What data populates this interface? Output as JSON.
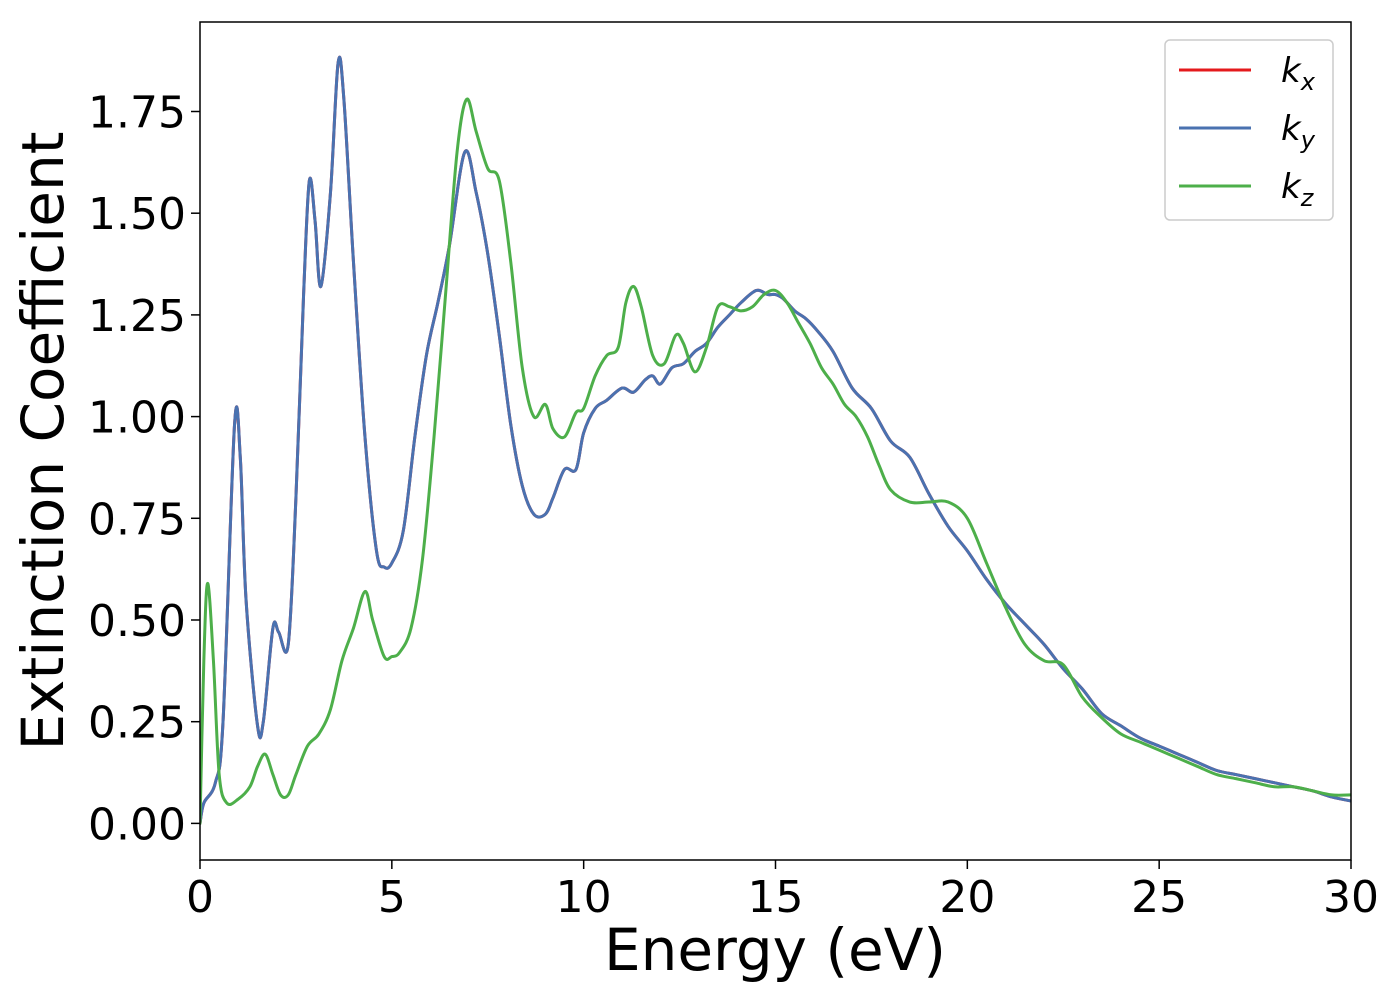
{
  "chart_data": {
    "type": "line",
    "title": "",
    "xlabel": "Energy (eV)",
    "ylabel": "Extinction Coefficient",
    "xlim": [
      0,
      30
    ],
    "ylim": [
      -0.09,
      1.97
    ],
    "xticks": [
      0,
      5,
      10,
      15,
      20,
      25,
      30
    ],
    "xtick_labels": [
      "0",
      "5",
      "10",
      "15",
      "20",
      "25",
      "30"
    ],
    "yticks": [
      0.0,
      0.25,
      0.5,
      0.75,
      1.0,
      1.25,
      1.5,
      1.75
    ],
    "ytick_labels": [
      "0.00",
      "0.25",
      "0.50",
      "0.75",
      "1.00",
      "1.25",
      "1.50",
      "1.75"
    ],
    "grid": false,
    "legend_position": "top-right",
    "series": [
      {
        "name": "k_x",
        "legend_base": "k",
        "legend_sub": "x",
        "color": "#e41a1c",
        "x": [
          0,
          0.1,
          0.4,
          0.6,
          0.9,
          1.05,
          1.2,
          1.5,
          1.65,
          1.9,
          2.05,
          2.3,
          2.5,
          2.7,
          2.85,
          3.0,
          3.15,
          3.4,
          3.6,
          3.75,
          4.0,
          4.3,
          4.6,
          4.8,
          5.0,
          5.3,
          5.6,
          5.9,
          6.2,
          6.5,
          6.9,
          7.2,
          7.5,
          7.8,
          8.1,
          8.4,
          8.7,
          9.0,
          9.2,
          9.5,
          9.8,
          10.0,
          10.3,
          10.6,
          11.0,
          11.3,
          11.6,
          11.8,
          12.0,
          12.3,
          12.6,
          12.9,
          13.2,
          13.5,
          13.8,
          14.1,
          14.5,
          14.8,
          15.0,
          15.2,
          15.5,
          15.8,
          16.1,
          16.5,
          17.0,
          17.5,
          18.0,
          18.5,
          19.0,
          19.5,
          20.0,
          20.5,
          21.0,
          21.5,
          22.0,
          22.5,
          23.0,
          23.5,
          24.0,
          24.5,
          25.0,
          25.5,
          26.0,
          26.5,
          27.0,
          27.5,
          28.0,
          28.5,
          29.0,
          29.5,
          30.0
        ],
        "values": [
          0.0,
          0.05,
          0.1,
          0.25,
          0.98,
          0.9,
          0.55,
          0.24,
          0.25,
          0.48,
          0.47,
          0.44,
          0.8,
          1.3,
          1.58,
          1.48,
          1.32,
          1.55,
          1.87,
          1.78,
          1.38,
          0.95,
          0.67,
          0.63,
          0.64,
          0.72,
          0.95,
          1.15,
          1.28,
          1.42,
          1.65,
          1.55,
          1.4,
          1.2,
          0.98,
          0.83,
          0.76,
          0.76,
          0.8,
          0.87,
          0.87,
          0.96,
          1.02,
          1.04,
          1.07,
          1.06,
          1.09,
          1.1,
          1.08,
          1.12,
          1.13,
          1.16,
          1.18,
          1.22,
          1.25,
          1.28,
          1.31,
          1.3,
          1.3,
          1.29,
          1.26,
          1.24,
          1.21,
          1.16,
          1.07,
          1.02,
          0.94,
          0.9,
          0.81,
          0.73,
          0.67,
          0.6,
          0.54,
          0.49,
          0.44,
          0.38,
          0.33,
          0.27,
          0.24,
          0.21,
          0.19,
          0.17,
          0.15,
          0.13,
          0.12,
          0.11,
          0.1,
          0.09,
          0.08,
          0.065,
          0.055
        ]
      },
      {
        "name": "k_y",
        "legend_base": "k",
        "legend_sub": "y",
        "color": "#4a72b0",
        "x": [
          0,
          0.1,
          0.4,
          0.6,
          0.9,
          1.05,
          1.2,
          1.5,
          1.65,
          1.9,
          2.05,
          2.3,
          2.5,
          2.7,
          2.85,
          3.0,
          3.15,
          3.4,
          3.6,
          3.75,
          4.0,
          4.3,
          4.6,
          4.8,
          5.0,
          5.3,
          5.6,
          5.9,
          6.2,
          6.5,
          6.9,
          7.2,
          7.5,
          7.8,
          8.1,
          8.4,
          8.7,
          9.0,
          9.2,
          9.5,
          9.8,
          10.0,
          10.3,
          10.6,
          11.0,
          11.3,
          11.6,
          11.8,
          12.0,
          12.3,
          12.6,
          12.9,
          13.2,
          13.5,
          13.8,
          14.1,
          14.5,
          14.8,
          15.0,
          15.2,
          15.5,
          15.8,
          16.1,
          16.5,
          17.0,
          17.5,
          18.0,
          18.5,
          19.0,
          19.5,
          20.0,
          20.5,
          21.0,
          21.5,
          22.0,
          22.5,
          23.0,
          23.5,
          24.0,
          24.5,
          25.0,
          25.5,
          26.0,
          26.5,
          27.0,
          27.5,
          28.0,
          28.5,
          29.0,
          29.5,
          30.0
        ],
        "values": [
          0.0,
          0.05,
          0.1,
          0.25,
          0.98,
          0.9,
          0.55,
          0.24,
          0.25,
          0.48,
          0.47,
          0.44,
          0.8,
          1.3,
          1.58,
          1.48,
          1.32,
          1.55,
          1.87,
          1.78,
          1.38,
          0.95,
          0.67,
          0.63,
          0.64,
          0.72,
          0.95,
          1.15,
          1.28,
          1.42,
          1.65,
          1.55,
          1.4,
          1.2,
          0.98,
          0.83,
          0.76,
          0.76,
          0.8,
          0.87,
          0.87,
          0.96,
          1.02,
          1.04,
          1.07,
          1.06,
          1.09,
          1.1,
          1.08,
          1.12,
          1.13,
          1.16,
          1.18,
          1.22,
          1.25,
          1.28,
          1.31,
          1.3,
          1.3,
          1.29,
          1.26,
          1.24,
          1.21,
          1.16,
          1.07,
          1.02,
          0.94,
          0.9,
          0.81,
          0.73,
          0.67,
          0.6,
          0.54,
          0.49,
          0.44,
          0.38,
          0.33,
          0.27,
          0.24,
          0.21,
          0.19,
          0.17,
          0.15,
          0.13,
          0.12,
          0.11,
          0.1,
          0.09,
          0.08,
          0.065,
          0.055
        ]
      },
      {
        "name": "k_z",
        "legend_base": "k",
        "legend_sub": "z",
        "color": "#4daf4a",
        "x": [
          0,
          0.1,
          0.2,
          0.35,
          0.5,
          0.7,
          1.0,
          1.3,
          1.5,
          1.7,
          1.9,
          2.1,
          2.3,
          2.5,
          2.8,
          3.1,
          3.4,
          3.7,
          4.0,
          4.3,
          4.5,
          4.8,
          5.0,
          5.2,
          5.5,
          5.8,
          6.1,
          6.4,
          6.7,
          6.95,
          7.2,
          7.5,
          7.8,
          8.1,
          8.4,
          8.7,
          9.0,
          9.2,
          9.5,
          9.8,
          10.0,
          10.3,
          10.6,
          10.9,
          11.1,
          11.3,
          11.5,
          11.8,
          12.1,
          12.4,
          12.6,
          12.9,
          13.2,
          13.5,
          13.8,
          14.1,
          14.4,
          14.7,
          15.0,
          15.3,
          15.6,
          15.9,
          16.2,
          16.5,
          16.8,
          17.1,
          17.4,
          17.7,
          18.0,
          18.5,
          19.0,
          19.5,
          20.0,
          20.5,
          21.0,
          21.5,
          22.0,
          22.5,
          23.0,
          23.5,
          24.0,
          24.5,
          25.0,
          25.5,
          26.0,
          26.5,
          27.0,
          27.5,
          28.0,
          28.5,
          29.0,
          29.5,
          30.0
        ],
        "values": [
          0.0,
          0.4,
          0.59,
          0.4,
          0.12,
          0.05,
          0.06,
          0.09,
          0.14,
          0.17,
          0.12,
          0.07,
          0.07,
          0.12,
          0.19,
          0.22,
          0.28,
          0.4,
          0.48,
          0.57,
          0.5,
          0.41,
          0.41,
          0.42,
          0.48,
          0.65,
          0.95,
          1.3,
          1.65,
          1.78,
          1.7,
          1.61,
          1.58,
          1.38,
          1.12,
          1.0,
          1.03,
          0.97,
          0.95,
          1.01,
          1.02,
          1.1,
          1.15,
          1.17,
          1.28,
          1.32,
          1.27,
          1.15,
          1.13,
          1.2,
          1.18,
          1.11,
          1.17,
          1.27,
          1.27,
          1.26,
          1.27,
          1.3,
          1.31,
          1.28,
          1.23,
          1.18,
          1.12,
          1.08,
          1.03,
          1.0,
          0.95,
          0.88,
          0.82,
          0.79,
          0.79,
          0.79,
          0.75,
          0.64,
          0.53,
          0.44,
          0.4,
          0.39,
          0.31,
          0.26,
          0.22,
          0.2,
          0.18,
          0.16,
          0.14,
          0.12,
          0.11,
          0.1,
          0.09,
          0.09,
          0.08,
          0.07,
          0.07
        ]
      }
    ]
  }
}
